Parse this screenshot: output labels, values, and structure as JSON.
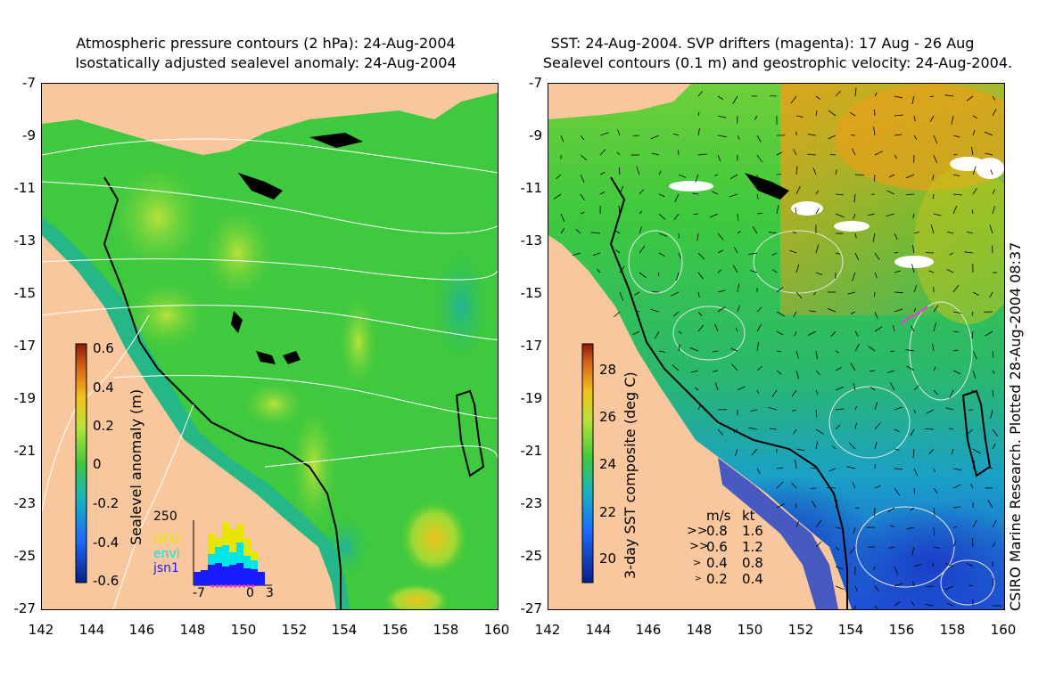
{
  "left_panel": {
    "title_line1": "Atmospheric pressure contours (2 hPa): 24-Aug-2004",
    "title_line2": "Isostatically adjusted sealevel anomaly: 24-Aug-2004",
    "colorbar_label": "Sealevel anomaly (m)",
    "colorbar_ticks": [
      "0.6",
      "0.4",
      "0.2",
      "0",
      "-0.2",
      "-0.4",
      "-0.6"
    ],
    "hist": {
      "ymax_label": "250",
      "x_ticks": [
        "-7",
        "0",
        "3"
      ],
      "satellites": [
        {
          "name": "GFO",
          "color": "#e6e600"
        },
        {
          "name": "envi",
          "color": "#00e6e6"
        },
        {
          "name": "jsn1",
          "color": "#1a1aff"
        }
      ]
    }
  },
  "right_panel": {
    "title_line1": "SST: 24-Aug-2004. SVP drifters (magenta): 17 Aug - 26 Aug",
    "title_line2": "Sealevel contours (0.1 m) and geostrophic velocity: 24-Aug-2004.",
    "colorbar_label": "3-day SST composite (deg C)",
    "colorbar_ticks": [
      "28",
      "26",
      "24",
      "22",
      "20"
    ],
    "velocity_legend": {
      "header_ms": "m/s",
      "header_kt": "kt",
      "rows": [
        {
          "ms": "0.8",
          "kt": "1.6"
        },
        {
          "ms": "0.6",
          "kt": "1.2"
        },
        {
          "ms": "0.4",
          "kt": "0.8"
        },
        {
          "ms": "0.2",
          "kt": "0.4"
        }
      ]
    },
    "credit": "CSIRO Marine Research. Plotted 28-Aug-2004 08:37"
  },
  "axes": {
    "lat_ticks": [
      "-7",
      "-9",
      "-11",
      "-13",
      "-15",
      "-17",
      "-19",
      "-21",
      "-23",
      "-25",
      "-27"
    ],
    "lon_ticks": [
      "142",
      "144",
      "146",
      "148",
      "150",
      "152",
      "154",
      "156",
      "158",
      "160"
    ],
    "lat_range": [
      -27,
      -7
    ],
    "lon_range": [
      142,
      160
    ]
  },
  "colors": {
    "land": "#f9c79d",
    "anomaly_base": "#3ec93e",
    "sst_warm": "#e8a018",
    "sst_cool": "#1f4fd6"
  }
}
